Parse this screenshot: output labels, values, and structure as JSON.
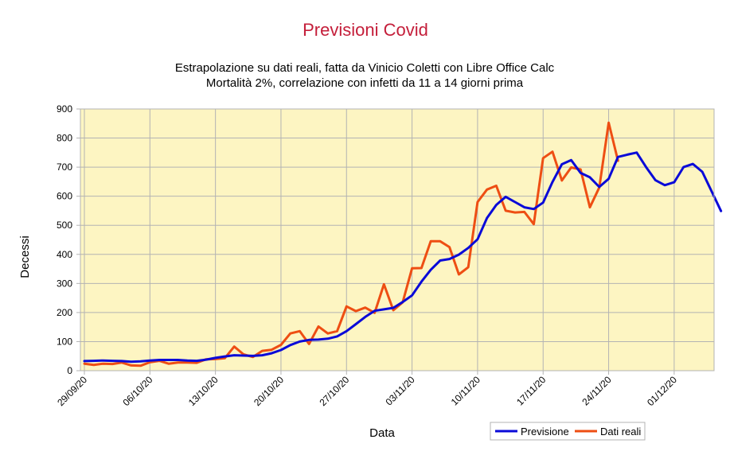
{
  "chart_data": {
    "type": "line",
    "title": "Previsioni Covid",
    "subtitle": [
      "Estrapolazione su dati reali, fatta da Vinicio Coletti con Libre Office Calc",
      "Mortalità 2%, correlazione con infetti da 11 a 14 giorni prima"
    ],
    "xlabel": "Data",
    "ylabel": "Decessi",
    "ylim": [
      0,
      900
    ],
    "yticks": [
      0,
      100,
      200,
      300,
      400,
      500,
      600,
      700,
      800,
      900
    ],
    "x_start": "29/09/20",
    "xticks": [
      "29/09/20",
      "06/10/20",
      "13/10/20",
      "20/10/20",
      "27/10/20",
      "03/11/20",
      "10/11/20",
      "17/11/20",
      "24/11/20",
      "01/12/20"
    ],
    "grid": true,
    "legend_position": "bottom-right",
    "plot_background": "#fdf5c2",
    "series": [
      {
        "name": "Previsione",
        "color": "#0a0ad8",
        "values": [
          33,
          34,
          35,
          34,
          33,
          31,
          32,
          35,
          37,
          37,
          37,
          35,
          34,
          38,
          44,
          49,
          53,
          52,
          51,
          53,
          60,
          71,
          88,
          100,
          106,
          107,
          110,
          118,
          136,
          160,
          185,
          206,
          211,
          216,
          236,
          259,
          306,
          347,
          379,
          384,
          399,
          422,
          452,
          525,
          570,
          598,
          580,
          562,
          556,
          578,
          649,
          710,
          724,
          680,
          665,
          632,
          660,
          735,
          743,
          750,
          700,
          655,
          638,
          648,
          700,
          711,
          684,
          617,
          549
        ]
      },
      {
        "name": "Dati reali",
        "color": "#ee4e13",
        "values": [
          24,
          20,
          24,
          23,
          28,
          18,
          17,
          29,
          34,
          24,
          28,
          28,
          27,
          39,
          40,
          43,
          83,
          56,
          47,
          68,
          72,
          89,
          128,
          136,
          92,
          152,
          128,
          136,
          221,
          205,
          217,
          199,
          297,
          208,
          235,
          352,
          353,
          445,
          445,
          425,
          331,
          356,
          580,
          623,
          636,
          550,
          544,
          546,
          504,
          731,
          753,
          654,
          699,
          692,
          562,
          630,
          853,
          722
        ]
      }
    ]
  }
}
